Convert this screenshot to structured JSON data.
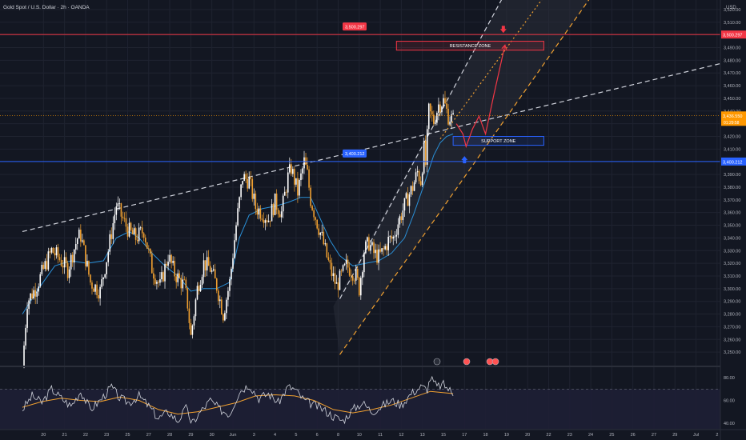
{
  "symbol_title": "Gold Spot / U.S. Dollar · 2h · OANDA",
  "currency": "USD",
  "colors": {
    "background": "#131722",
    "grid": "#1f2330",
    "axis_text": "#b2b5be",
    "candle_up": "#ffffff",
    "candle_down": "#f0a030",
    "ema": "#2a8fd6",
    "resistance": "#f23645",
    "support": "#2962ff",
    "current": "#ff9800",
    "trend_white": "#d0d3dc",
    "trend_orange": "#f0a030",
    "projection": "#f23645",
    "rsi": "#d0d3dc",
    "rsi_ma": "#f0a030",
    "rsi_band": "#1e1f35"
  },
  "chart_data": {
    "type": "candlestick",
    "ylim": [
      3240,
      3525
    ],
    "y_ticks": [
      3250,
      3260,
      3270,
      3280,
      3290,
      3300,
      3310,
      3320,
      3330,
      3340,
      3350,
      3360,
      3370,
      3380,
      3390,
      3400,
      3410,
      3420,
      3430,
      3440,
      3450,
      3460,
      3470,
      3480,
      3490,
      3500,
      3510,
      3520
    ],
    "x_ticks": [
      {
        "label": "20",
        "t": 13
      },
      {
        "label": "21",
        "t": 26
      },
      {
        "label": "22",
        "t": 39
      },
      {
        "label": "23",
        "t": 52
      },
      {
        "label": "25",
        "t": 65
      },
      {
        "label": "27",
        "t": 78
      },
      {
        "label": "28",
        "t": 91
      },
      {
        "label": "29",
        "t": 104
      },
      {
        "label": "30",
        "t": 117
      },
      {
        "label": "Jun",
        "t": 130
      },
      {
        "label": "3",
        "t": 143
      },
      {
        "label": "4",
        "t": 156
      },
      {
        "label": "5",
        "t": 169
      },
      {
        "label": "6",
        "t": 182
      },
      {
        "label": "8",
        "t": 195
      },
      {
        "label": "10",
        "t": 208
      },
      {
        "label": "11",
        "t": 221
      },
      {
        "label": "12",
        "t": 234
      },
      {
        "label": "13",
        "t": 247
      },
      {
        "label": "15",
        "t": 260
      },
      {
        "label": "17",
        "t": 273
      },
      {
        "label": "18",
        "t": 286
      },
      {
        "label": "19",
        "t": 299
      },
      {
        "label": "20",
        "t": 312
      },
      {
        "label": "22",
        "t": 325
      },
      {
        "label": "23",
        "t": 338
      },
      {
        "label": "24",
        "t": 351
      },
      {
        "label": "25",
        "t": 364
      },
      {
        "label": "26",
        "t": 377
      },
      {
        "label": "27",
        "t": 390
      },
      {
        "label": "29",
        "t": 403
      },
      {
        "label": "Jul",
        "t": 416
      },
      {
        "label": "2",
        "t": 429
      }
    ],
    "price_path": [
      [
        0,
        3238
      ],
      [
        3,
        3290
      ],
      [
        8,
        3300
      ],
      [
        14,
        3318
      ],
      [
        18,
        3330
      ],
      [
        22,
        3325
      ],
      [
        28,
        3315
      ],
      [
        34,
        3340
      ],
      [
        36,
        3342
      ],
      [
        42,
        3305
      ],
      [
        48,
        3298
      ],
      [
        53,
        3330
      ],
      [
        58,
        3366
      ],
      [
        63,
        3352
      ],
      [
        66,
        3345
      ],
      [
        70,
        3340
      ],
      [
        75,
        3346
      ],
      [
        80,
        3316
      ],
      [
        85,
        3302
      ],
      [
        90,
        3326
      ],
      [
        94,
        3312
      ],
      [
        100,
        3302
      ],
      [
        102,
        3288
      ],
      [
        104,
        3262
      ],
      [
        108,
        3300
      ],
      [
        112,
        3320
      ],
      [
        116,
        3316
      ],
      [
        120,
        3302
      ],
      [
        124,
        3280
      ],
      [
        128,
        3305
      ],
      [
        132,
        3350
      ],
      [
        136,
        3388
      ],
      [
        140,
        3385
      ],
      [
        144,
        3364
      ],
      [
        148,
        3360
      ],
      [
        152,
        3355
      ],
      [
        156,
        3368
      ],
      [
        160,
        3360
      ],
      [
        164,
        3388
      ],
      [
        166,
        3395
      ],
      [
        170,
        3376
      ],
      [
        174,
        3400
      ],
      [
        176,
        3390
      ],
      [
        178,
        3370
      ],
      [
        182,
        3352
      ],
      [
        185,
        3340
      ],
      [
        188,
        3325
      ],
      [
        191,
        3312
      ],
      [
        194,
        3302
      ],
      [
        197,
        3310
      ],
      [
        200,
        3318
      ],
      [
        203,
        3315
      ],
      [
        206,
        3310
      ],
      [
        208,
        3300
      ],
      [
        211,
        3330
      ],
      [
        214,
        3336
      ],
      [
        217,
        3328
      ],
      [
        220,
        3325
      ],
      [
        223,
        3330
      ],
      [
        226,
        3338
      ],
      [
        229,
        3340
      ],
      [
        232,
        3352
      ],
      [
        235,
        3362
      ],
      [
        238,
        3372
      ],
      [
        241,
        3380
      ],
      [
        244,
        3392
      ],
      [
        246,
        3385
      ],
      [
        248,
        3410
      ],
      [
        249,
        3398
      ],
      [
        251,
        3440
      ],
      [
        254,
        3432
      ],
      [
        257,
        3445
      ],
      [
        260,
        3448
      ],
      [
        263,
        3436
      ],
      [
        266,
        3433
      ]
    ],
    "ema_path": [
      [
        0,
        3280
      ],
      [
        10,
        3300
      ],
      [
        20,
        3318
      ],
      [
        30,
        3322
      ],
      [
        40,
        3320
      ],
      [
        50,
        3322
      ],
      [
        58,
        3340
      ],
      [
        66,
        3345
      ],
      [
        72,
        3340
      ],
      [
        80,
        3328
      ],
      [
        88,
        3318
      ],
      [
        96,
        3310
      ],
      [
        104,
        3298
      ],
      [
        112,
        3300
      ],
      [
        120,
        3300
      ],
      [
        128,
        3305
      ],
      [
        134,
        3340
      ],
      [
        140,
        3358
      ],
      [
        148,
        3363
      ],
      [
        156,
        3365
      ],
      [
        164,
        3368
      ],
      [
        172,
        3372
      ],
      [
        178,
        3372
      ],
      [
        184,
        3355
      ],
      [
        190,
        3338
      ],
      [
        196,
        3326
      ],
      [
        204,
        3318
      ],
      [
        212,
        3320
      ],
      [
        220,
        3322
      ],
      [
        228,
        3328
      ],
      [
        236,
        3340
      ],
      [
        242,
        3360
      ],
      [
        248,
        3382
      ],
      [
        254,
        3405
      ],
      [
        258,
        3415
      ],
      [
        262,
        3420
      ],
      [
        266,
        3422
      ]
    ],
    "levels": [
      {
        "name": "resistance",
        "label": "3,500.297",
        "value": 3500.297
      },
      {
        "name": "support",
        "label": "3,400.212",
        "value": 3400.212
      },
      {
        "name": "current",
        "label": "3,436.550",
        "countdown": "01:29:58",
        "value": 3436.55
      }
    ],
    "zones": [
      {
        "name": "resistance-zone",
        "label": "RESISTANCE ZONE",
        "t0": 231,
        "t1": 322,
        "y0": 3488,
        "y1": 3495
      },
      {
        "name": "support-zone",
        "label": "SUPPORT ZONE",
        "t0": 266,
        "t1": 322,
        "y0": 3413,
        "y1": 3420
      }
    ],
    "trendlines": [
      {
        "name": "trendline-white-long",
        "dash": "6,4",
        "color": "trend_white",
        "t0": 0,
        "y0": 3345,
        "t1": 433,
        "y1": 3478
      },
      {
        "name": "trendline-white-steep",
        "dash": "6,4",
        "color": "trend_white",
        "t0": 196,
        "y0": 3292,
        "t1": 296,
        "y1": 3528
      },
      {
        "name": "trendline-orange-lower",
        "dash": "6,4",
        "color": "trend_orange",
        "t0": 196,
        "y0": 3248,
        "t1": 350,
        "y1": 3528
      },
      {
        "name": "trendline-orange-mid",
        "dash": "2,3",
        "color": "trend_orange",
        "t0": 258,
        "y0": 3418,
        "t1": 322,
        "y1": 3530
      }
    ],
    "channel": [
      [
        192,
        3286
      ],
      [
        296,
        3528
      ],
      [
        350,
        3528
      ],
      [
        196,
        3248
      ]
    ],
    "projection_path": [
      [
        268,
        3430
      ],
      [
        272,
        3422
      ],
      [
        274,
        3412
      ],
      [
        278,
        3426
      ],
      [
        282,
        3436
      ],
      [
        286,
        3422
      ],
      [
        291,
        3452
      ],
      [
        298,
        3492
      ]
    ],
    "markers": [
      {
        "name": "down-arrow-marker",
        "t": 297,
        "value": 3504,
        "direction": "down",
        "color": "resistance"
      },
      {
        "name": "up-arrow-marker",
        "t": 273,
        "value": 3402,
        "direction": "up",
        "color": "support"
      }
    ],
    "rsi": {
      "ylim": [
        35,
        90
      ],
      "ticks": [
        40,
        60,
        80
      ],
      "band": [
        30,
        70
      ],
      "values": [
        [
          0,
          52
        ],
        [
          6,
          64
        ],
        [
          12,
          58
        ],
        [
          18,
          70
        ],
        [
          24,
          62
        ],
        [
          30,
          55
        ],
        [
          36,
          68
        ],
        [
          42,
          52
        ],
        [
          48,
          60
        ],
        [
          55,
          72
        ],
        [
          60,
          62
        ],
        [
          66,
          58
        ],
        [
          72,
          64
        ],
        [
          78,
          55
        ],
        [
          84,
          44
        ],
        [
          90,
          50
        ],
        [
          96,
          42
        ],
        [
          102,
          55
        ],
        [
          104,
          38
        ],
        [
          110,
          50
        ],
        [
          116,
          60
        ],
        [
          122,
          52
        ],
        [
          128,
          48
        ],
        [
          134,
          68
        ],
        [
          140,
          74
        ],
        [
          146,
          62
        ],
        [
          152,
          66
        ],
        [
          158,
          58
        ],
        [
          164,
          72
        ],
        [
          168,
          70
        ],
        [
          174,
          60
        ],
        [
          180,
          56
        ],
        [
          186,
          52
        ],
        [
          192,
          46
        ],
        [
          198,
          42
        ],
        [
          204,
          52
        ],
        [
          210,
          58
        ],
        [
          216,
          50
        ],
        [
          222,
          55
        ],
        [
          228,
          60
        ],
        [
          234,
          56
        ],
        [
          240,
          66
        ],
        [
          246,
          72
        ],
        [
          250,
          70
        ],
        [
          252,
          80
        ],
        [
          256,
          72
        ],
        [
          260,
          74
        ],
        [
          264,
          69
        ],
        [
          266,
          64
        ]
      ],
      "ma": [
        [
          0,
          54
        ],
        [
          12,
          59
        ],
        [
          24,
          62
        ],
        [
          36,
          60
        ],
        [
          48,
          59
        ],
        [
          60,
          63
        ],
        [
          72,
          60
        ],
        [
          84,
          52
        ],
        [
          96,
          48
        ],
        [
          108,
          50
        ],
        [
          120,
          54
        ],
        [
          132,
          58
        ],
        [
          144,
          64
        ],
        [
          156,
          65
        ],
        [
          168,
          64
        ],
        [
          180,
          60
        ],
        [
          192,
          52
        ],
        [
          204,
          49
        ],
        [
          216,
          52
        ],
        [
          228,
          56
        ],
        [
          240,
          62
        ],
        [
          252,
          68
        ],
        [
          266,
          66
        ]
      ]
    }
  }
}
